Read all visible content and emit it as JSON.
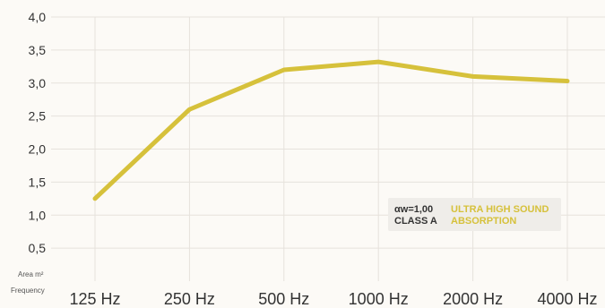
{
  "chart_data": {
    "type": "line",
    "categories": [
      "125 Hz",
      "250 Hz",
      "500 Hz",
      "1000 Hz",
      "2000 Hz",
      "4000 Hz"
    ],
    "series": [
      {
        "values": [
          1.25,
          2.6,
          3.2,
          3.32,
          3.1,
          3.03
        ],
        "color": "#d6c13b"
      }
    ],
    "ylim": [
      0,
      4
    ],
    "yticks": [
      "0,5",
      "1,0",
      "1,5",
      "2,0",
      "2,5",
      "3,0",
      "3,5",
      "4,0"
    ],
    "ytick_values": [
      0.5,
      1.0,
      1.5,
      2.0,
      2.5,
      3.0,
      3.5,
      4.0
    ],
    "ylabel": "Area m²",
    "xlabel": "Frequency",
    "grid": true,
    "annotation": {
      "line1_dark": "αw=1,00",
      "line1_accent": "ULTRA HIGH SOUND",
      "line2_dark": "CLASS A",
      "line2_accent": "ABSORPTION",
      "accent_color": "#d6c13b"
    }
  }
}
